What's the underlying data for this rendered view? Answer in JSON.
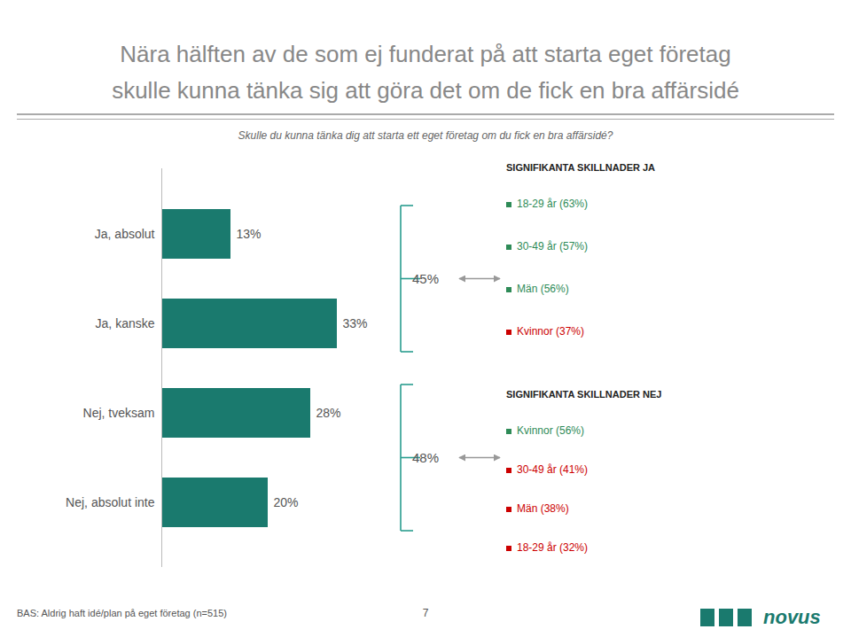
{
  "chart_data": {
    "type": "bar",
    "orientation": "horizontal",
    "title": "Nära hälften av de som ej funderat på att starta eget företag\nskulle kunna tänka sig att göra det om de fick en bra affärsidé",
    "subtitle": "Skulle du kunna tänka dig att starta ett eget företag om du fick en bra affärsidé?",
    "categories": [
      "Ja, absolut",
      "Ja, kanske",
      "Nej, tveksam",
      "Nej, absolut inte"
    ],
    "values": [
      13,
      33,
      28,
      20
    ],
    "value_labels": [
      "13%",
      "33%",
      "28%",
      "20%"
    ],
    "data_labels": true,
    "color": "#1a7a6e",
    "xlim": [
      0,
      48
    ],
    "tick_labels": "y",
    "grid": false,
    "annotations": [
      {
        "label": "45%",
        "value": 45,
        "categories": [
          "Ja, absolut",
          "Ja, kanske"
        ],
        "color": "#2a9d8f"
      },
      {
        "label": "48%",
        "value": 48,
        "categories": [
          "Nej, tveksam",
          "Nej, absolut inte"
        ],
        "color": "#2a9d8f"
      }
    ],
    "panels": [
      {
        "title": "SIGNIFIKANTA SKILLNADER JA",
        "items": [
          {
            "text": "18-29 år (63%)",
            "value": 63,
            "color": "#2e8b57"
          },
          {
            "text": "30-49 år (57%)",
            "value": 57,
            "color": "#2e8b57"
          },
          {
            "text": "Män (56%)",
            "value": 56,
            "color": "#2e8b57"
          },
          {
            "text": "Kvinnor (37%)",
            "value": 37,
            "color": "#cc0000"
          }
        ]
      },
      {
        "title": "SIGNIFIKANTA SKILLNADER NEJ",
        "items": [
          {
            "text": "Kvinnor (56%)",
            "value": 56,
            "color": "#2e8b57"
          },
          {
            "text": "30-49 år (41%)",
            "value": 41,
            "color": "#cc0000"
          },
          {
            "text": "Män (38%)",
            "value": 38,
            "color": "#cc0000"
          },
          {
            "text": "18-29 år (32%)",
            "value": 32,
            "color": "#cc0000"
          }
        ]
      }
    ],
    "footer": "BAS: Aldrig haft idé/plan på eget företag (n=515)",
    "page": "7",
    "logo": {
      "text": "novus",
      "color": "#1a7a6e"
    }
  }
}
